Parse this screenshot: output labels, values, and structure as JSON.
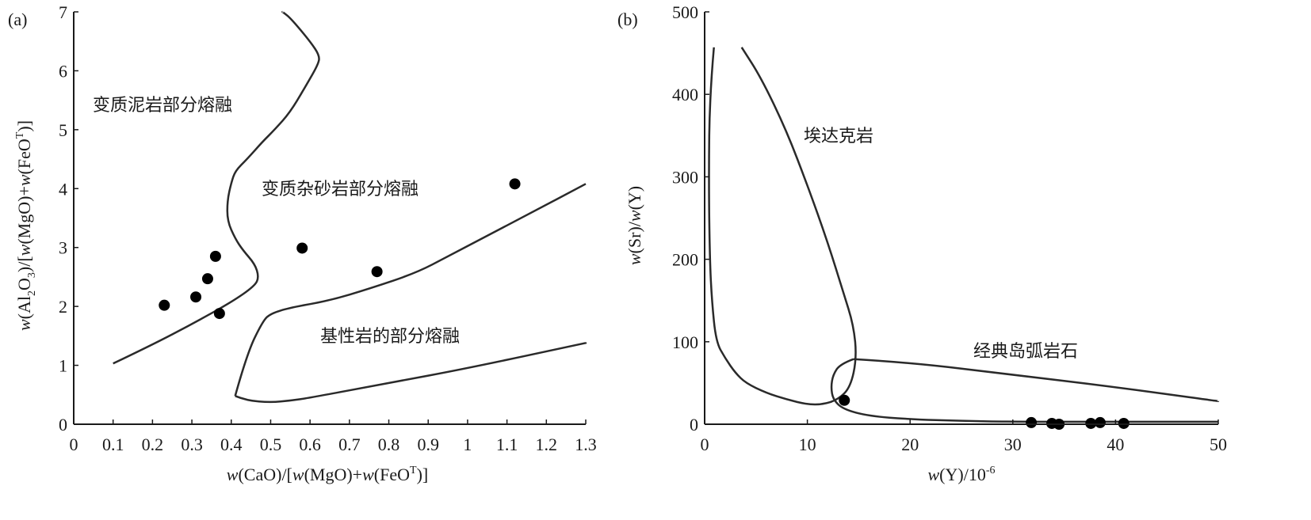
{
  "chart_data": [
    {
      "type": "scatter",
      "panel_label": "(a)",
      "xlabel": {
        "pre": "w",
        "a": "(CaO)/[",
        "b": "w",
        "c": "(MgO)+",
        "d": "w",
        "e": "(FeO",
        "sup": "T",
        "f": ")]"
      },
      "ylabel": {
        "pre": "w",
        "a": "(Al",
        "sub2": "2",
        "b": "O",
        "sub3": "3",
        "c": ")/[",
        "d": "w",
        "e": "(MgO)+",
        "f": "w",
        "g": "(FeO",
        "sup": "T",
        "h": ")]"
      },
      "xlim": [
        0,
        1.3
      ],
      "ylim": [
        0,
        7
      ],
      "xticks": [
        "0",
        "0.1",
        "0.2",
        "0.3",
        "0.4",
        "0.5",
        "0.6",
        "0.7",
        "0.8",
        "0.9",
        "1",
        "1.1",
        "1.2",
        "1.3"
      ],
      "yticks": [
        "0",
        "1",
        "2",
        "3",
        "4",
        "5",
        "6",
        "7"
      ],
      "grid": false,
      "regions": [
        {
          "label": "变质泥岩部分熔融"
        },
        {
          "label": "变质杂砂岩部分熔融"
        },
        {
          "label": "基性岩的部分熔融"
        }
      ],
      "boundary_curves": [
        {
          "points": [
            [
              0.1,
              1.03
            ],
            [
              0.2,
              1.35
            ],
            [
              0.3,
              1.7
            ],
            [
              0.4,
              2.07
            ],
            [
              0.46,
              2.35
            ],
            [
              0.47,
              2.5
            ],
            [
              0.46,
              2.72
            ],
            [
              0.43,
              2.95
            ],
            [
              0.41,
              3.15
            ],
            [
              0.39,
              3.45
            ],
            [
              0.39,
              3.8
            ],
            [
              0.4,
              4.1
            ],
            [
              0.41,
              4.3
            ],
            [
              0.44,
              4.5
            ],
            [
              0.48,
              4.8
            ],
            [
              0.51,
              5.0
            ],
            [
              0.55,
              5.3
            ],
            [
              0.59,
              5.75
            ],
            [
              0.62,
              6.1
            ],
            [
              0.625,
              6.25
            ],
            [
              0.6,
              6.5
            ],
            [
              0.55,
              6.9
            ],
            [
              0.53,
              7.0
            ]
          ]
        },
        {
          "points": [
            [
              0.41,
              0.48
            ],
            [
              0.44,
              0.4
            ],
            [
              0.5,
              0.37
            ],
            [
              0.55,
              0.4
            ],
            [
              0.6,
              0.45
            ],
            [
              0.8,
              0.7
            ],
            [
              1.0,
              0.95
            ],
            [
              1.3,
              1.38
            ]
          ]
        },
        {
          "points": [
            [
              0.41,
              0.48
            ],
            [
              0.44,
              1.2
            ],
            [
              0.48,
              1.75
            ],
            [
              0.5,
              1.88
            ],
            [
              0.55,
              1.98
            ],
            [
              0.65,
              2.1
            ],
            [
              0.75,
              2.3
            ],
            [
              0.87,
              2.57
            ],
            [
              0.95,
              2.85
            ],
            [
              1.05,
              3.2
            ],
            [
              1.15,
              3.55
            ],
            [
              1.3,
              4.08
            ]
          ]
        }
      ],
      "points": {
        "x": [
          0.23,
          0.31,
          0.34,
          0.36,
          0.37,
          0.58,
          0.77,
          1.12
        ],
        "y": [
          2.02,
          2.16,
          2.47,
          2.85,
          1.88,
          2.99,
          2.59,
          4.08
        ]
      }
    },
    {
      "type": "scatter",
      "panel_label": "(b)",
      "xlabel": {
        "pre": "w",
        "a": "(Y)/10",
        "sup": "-6"
      },
      "ylabel": {
        "pre": "w",
        "a": "(Sr)/",
        "b": "w",
        "c": "(Y)"
      },
      "xlim": [
        0,
        50
      ],
      "ylim": [
        0,
        500
      ],
      "xticks": [
        "0",
        "10",
        "20",
        "30",
        "40",
        "50"
      ],
      "yticks": [
        "0",
        "100",
        "200",
        "300",
        "400",
        "500"
      ],
      "grid": false,
      "regions": [
        {
          "label": "埃达克岩"
        },
        {
          "label": "经典岛弧岩石"
        }
      ],
      "boundary_curves": [
        {
          "points": [
            [
              0.9,
              457
            ],
            [
              0.5,
              400
            ],
            [
              0.4,
              300
            ],
            [
              0.5,
              200
            ],
            [
              0.7,
              150
            ],
            [
              1.1,
              100
            ],
            [
              2.0,
              80
            ],
            [
              3.0,
              62
            ],
            [
              4.0,
              50
            ],
            [
              6.0,
              38
            ],
            [
              8.0,
              30
            ],
            [
              10.0,
              24
            ],
            [
              11.5,
              24
            ],
            [
              13.0,
              30
            ],
            [
              14.2,
              45
            ],
            [
              14.8,
              80
            ],
            [
              14.5,
              120
            ],
            [
              13.5,
              160
            ],
            [
              12.0,
              220
            ],
            [
              10.0,
              290
            ],
            [
              8.0,
              355
            ],
            [
              5.5,
              420
            ],
            [
              3.6,
              457
            ]
          ]
        },
        {
          "points": [
            [
              14.5,
              79
            ],
            [
              13.2,
              73
            ],
            [
              12.5,
              60
            ],
            [
              12.3,
              45
            ],
            [
              12.5,
              30
            ],
            [
              13.5,
              18
            ],
            [
              16,
              10
            ],
            [
              20,
              6
            ],
            [
              25,
              4
            ],
            [
              30,
              3
            ],
            [
              40,
              3
            ],
            [
              50,
              3
            ]
          ]
        },
        {
          "points": [
            [
              14.5,
              79
            ],
            [
              20,
              75
            ],
            [
              30,
              60
            ],
            [
              40,
              45
            ],
            [
              50,
              28
            ]
          ]
        }
      ],
      "points": {
        "x": [
          13.6,
          31.8,
          33.8,
          34.5,
          37.6,
          38.5,
          40.8
        ],
        "y": [
          29,
          2,
          1,
          0,
          1,
          2,
          1
        ]
      }
    }
  ]
}
